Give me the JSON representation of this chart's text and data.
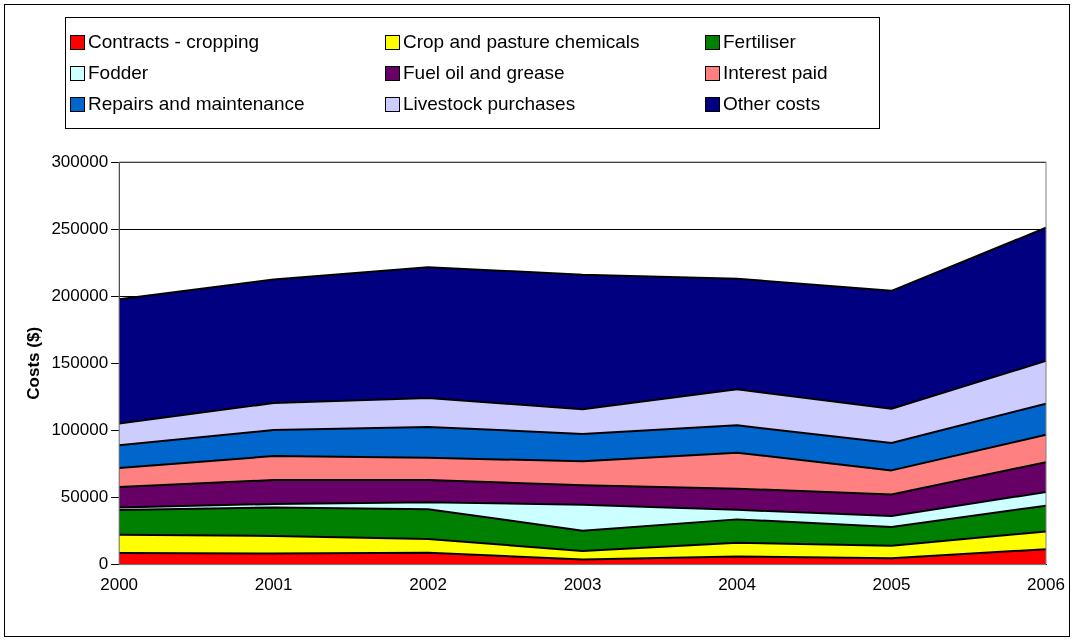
{
  "chart_data": {
    "type": "area",
    "stacked": true,
    "ylabel": "Costs ($)",
    "categories": [
      "2000",
      "2001",
      "2002",
      "2003",
      "2004",
      "2005",
      "2006"
    ],
    "ylim": [
      0,
      300000
    ],
    "yticks": [
      0,
      50000,
      100000,
      150000,
      200000,
      250000,
      300000
    ],
    "grid": "y",
    "legend": "top",
    "series": [
      {
        "name": "Contracts - cropping",
        "color": "#ff0000",
        "values": [
          8700,
          8200,
          8900,
          3800,
          6100,
          4800,
          11500
        ]
      },
      {
        "name": "Crop and pasture chemicals",
        "color": "#ffff00",
        "values": [
          13500,
          13200,
          10200,
          6400,
          10200,
          9200,
          13200
        ]
      },
      {
        "name": "Fertiliser",
        "color": "#008000",
        "values": [
          18400,
          21200,
          22200,
          15100,
          17400,
          14100,
          19200
        ]
      },
      {
        "name": "Fodder",
        "color": "#ccffff",
        "values": [
          2000,
          2600,
          5100,
          19300,
          7100,
          8100,
          10200
        ]
      },
      {
        "name": "Fuel oil and grease",
        "color": "#660066",
        "values": [
          15300,
          17800,
          16600,
          14600,
          15800,
          16100,
          22200
        ]
      },
      {
        "name": "Interest paid",
        "color": "#ff8080",
        "values": [
          14000,
          17900,
          16600,
          17800,
          26800,
          17900,
          20400
        ]
      },
      {
        "name": "Repairs and maintenance",
        "color": "#0066cc",
        "values": [
          17100,
          19400,
          23000,
          20400,
          20400,
          20400,
          23200
        ]
      },
      {
        "name": "Livestock purchases",
        "color": "#ccccff",
        "values": [
          16100,
          20100,
          21600,
          18400,
          26800,
          25500,
          31900
        ]
      },
      {
        "name": "Other costs",
        "color": "#000080",
        "values": [
          92600,
          92000,
          97400,
          100200,
          82400,
          87900,
          99200
        ]
      }
    ]
  }
}
